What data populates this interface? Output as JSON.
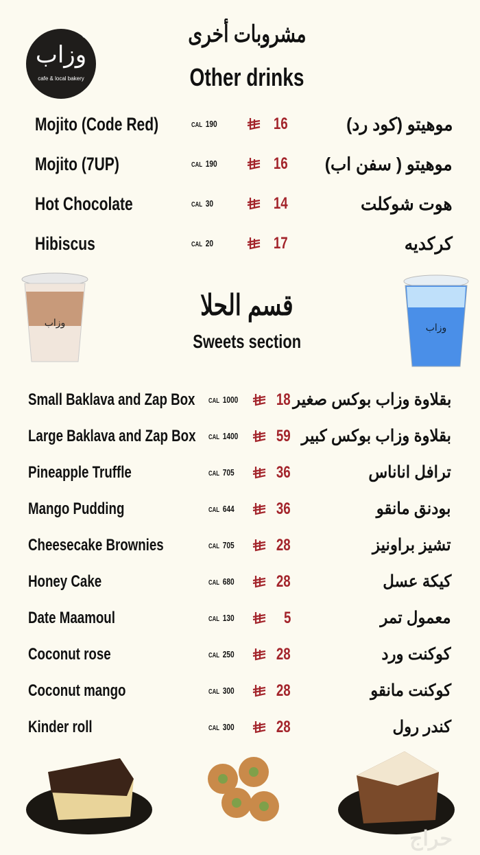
{
  "logo": {
    "arabic": "وزاب",
    "tagline": "cafe & local bakery",
    "mark": "®"
  },
  "colors": {
    "background": "#fcfaf0",
    "price": "#a3242b",
    "text": "#111111",
    "logo_bg": "#1f1d1b"
  },
  "currency_icon": "saudi-riyal-icon",
  "cal_label": "CAL",
  "drinks": {
    "title_ar": "مشروبات أخرى",
    "title_en": "Other drinks",
    "items": [
      {
        "en": "Mojito (Code Red)",
        "cal": "190",
        "price": "16",
        "ar": "موهيتو (كود رد)"
      },
      {
        "en": "Mojito (7UP)",
        "cal": "190",
        "price": "16",
        "ar": "موهيتو ( سفن اب)"
      },
      {
        "en": "Hot Chocolate",
        "cal": "30",
        "price": "14",
        "ar": "هوت شوكلت"
      },
      {
        "en": "Hibiscus",
        "cal": "20",
        "price": "17",
        "ar": "كركديه"
      }
    ]
  },
  "sweets": {
    "title_ar": "قسم الحلا",
    "title_en": "Sweets section",
    "items": [
      {
        "en": "Small Baklava and Zap Box",
        "cal": "1000",
        "price": "18",
        "ar": "بقلاوة وزاب بوكس صغير"
      },
      {
        "en": "Large Baklava and Zap Box",
        "cal": "1400",
        "price": "59",
        "ar": "بقلاوة وزاب بوكس كبير"
      },
      {
        "en": "Pineapple Truffle",
        "cal": "705",
        "price": "36",
        "ar": "ترافل اناناس"
      },
      {
        "en": "Mango Pudding",
        "cal": "644",
        "price": "36",
        "ar": "بودنق مانقو"
      },
      {
        "en": "Cheesecake Brownies",
        "cal": "705",
        "price": "28",
        "ar": "تشيز براونيز"
      },
      {
        "en": "Honey Cake",
        "cal": "680",
        "price": "28",
        "ar": "كيكة عسل"
      },
      {
        "en": "Date Maamoul",
        "cal": "130",
        "price": "5",
        "ar": "معمول تمر"
      },
      {
        "en": "Coconut rose",
        "cal": "250",
        "price": "28",
        "ar": "كوكنت ورد"
      },
      {
        "en": "Coconut mango",
        "cal": "300",
        "price": "28",
        "ar": "كوكنت مانقو"
      },
      {
        "en": "Kinder roll",
        "cal": "300",
        "price": "28",
        "ar": "كندر رول"
      }
    ]
  },
  "watermark": "حراج"
}
